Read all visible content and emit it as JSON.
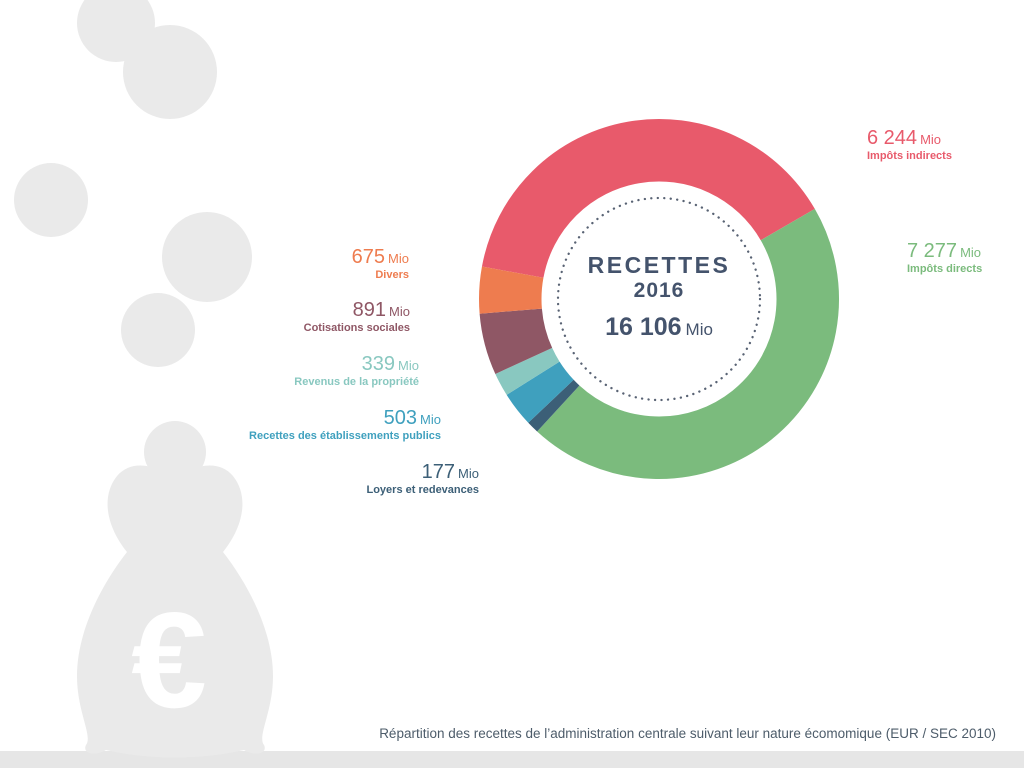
{
  "caption": "Répartition des recettes de l’administration centrale suivant leur nature écomomique (EUR / SEC 2010)",
  "center": {
    "title": "RECETTES",
    "year": "2016",
    "total_display": "16 106",
    "total_unit": "Mio",
    "text_color": "#44536c"
  },
  "watermark": {
    "euro_symbol": "€",
    "color": "#eaeaea",
    "icons": [
      "coin-circles",
      "money-bag",
      "euro-sign"
    ]
  },
  "footer_bar_color": "#e6e6e6",
  "chart_data": {
    "type": "pie",
    "subtype": "donut",
    "title": "RECETTES 2016",
    "total_value": 16106,
    "total_display": "16 106",
    "unit": "Mio",
    "currency_note": "EUR / SEC 2010",
    "start_angle_deg": -79.6,
    "clockwise": true,
    "legend_position": "around",
    "dotted_inner_ring": true,
    "segments": [
      {
        "label": "Impôts indirects",
        "value": 6244,
        "display": "6 244",
        "unit": "Mio",
        "color": "#e85a6b"
      },
      {
        "label": "Impôts directs",
        "value": 7277,
        "display": "7 277",
        "unit": "Mio",
        "color": "#7bbb7d"
      },
      {
        "label": "Loyers et redevances",
        "value": 177,
        "display": "177",
        "unit": "Mio",
        "color": "#3c5f77"
      },
      {
        "label": "Recettes des  établissements publics",
        "value": 503,
        "display": "503",
        "unit": "Mio",
        "color": "#3fa0be"
      },
      {
        "label": "Revenus de la propriété",
        "value": 339,
        "display": "339",
        "unit": "Mio",
        "color": "#89c8c0"
      },
      {
        "label": "Cotisations sociales",
        "value": 891,
        "display": "891",
        "unit": "Mio",
        "color": "#8f5765"
      },
      {
        "label": "Divers",
        "value": 675,
        "display": "675",
        "unit": "Mio",
        "color": "#ee7c4f"
      }
    ]
  }
}
